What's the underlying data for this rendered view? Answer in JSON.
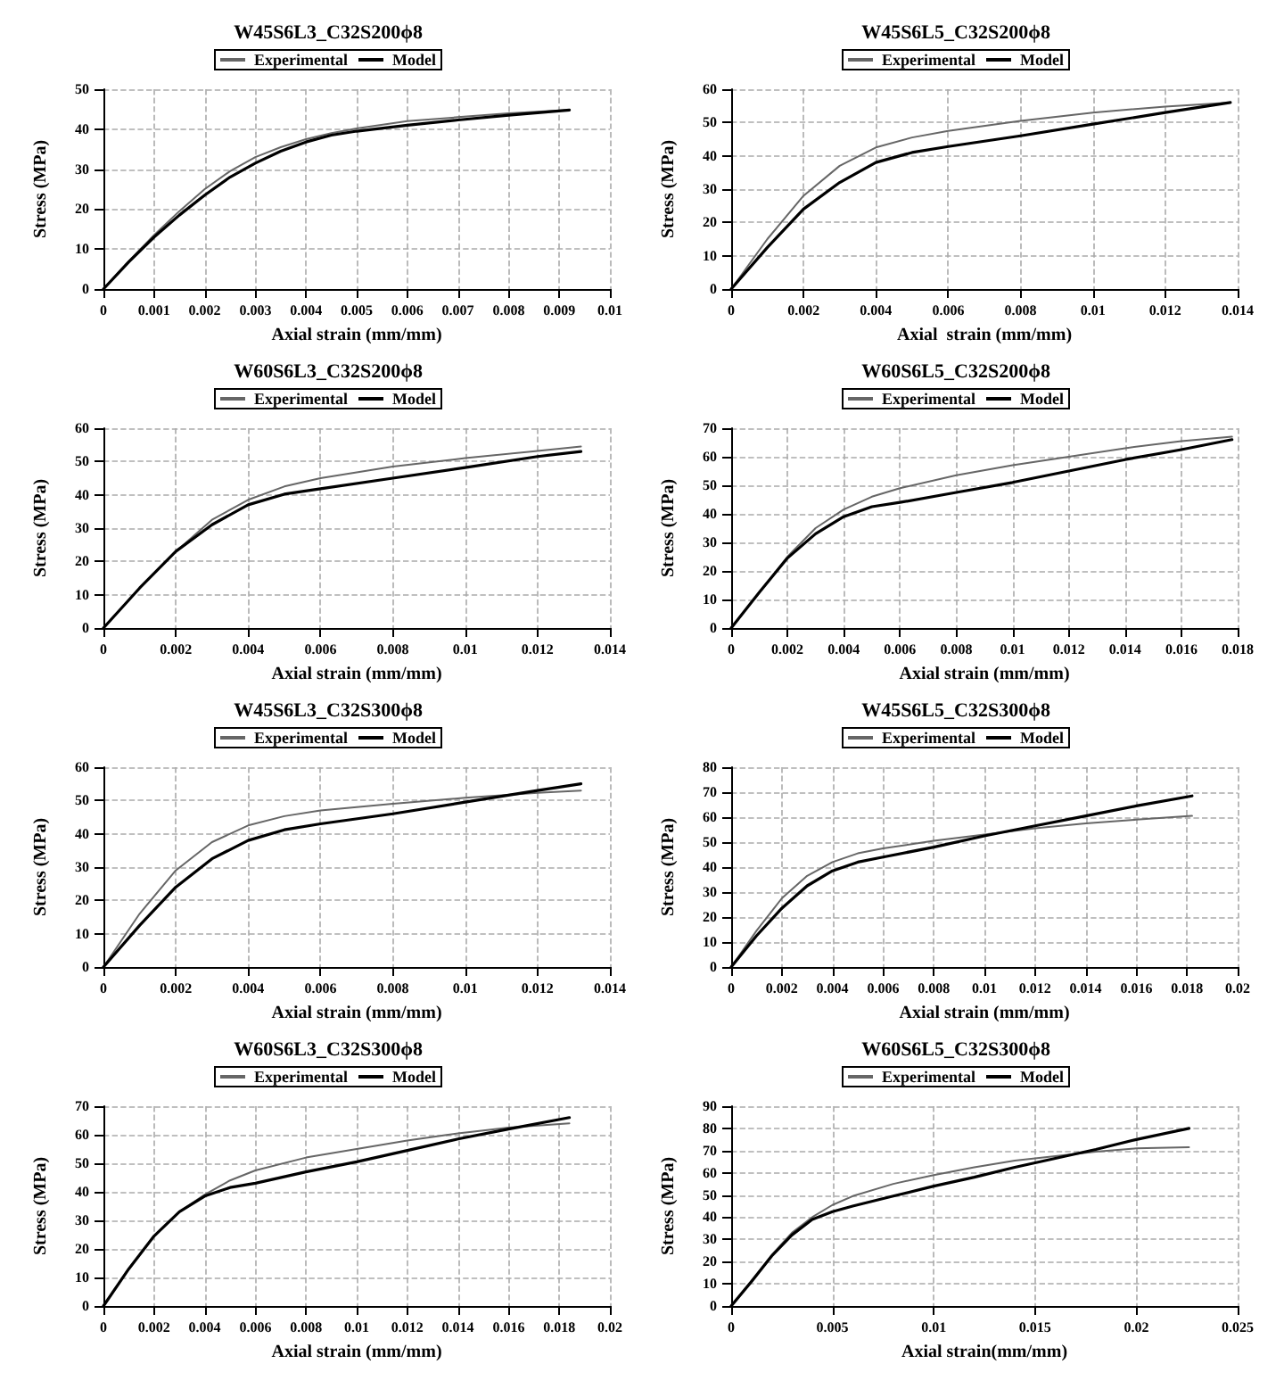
{
  "chart_data": [
    {
      "type": "line",
      "title": "W45S6L3_C32S200ϕ8",
      "xlabel": "Axial strain (mm/mm)",
      "ylabel": "Stress (MPa)",
      "xlim": [
        0,
        0.01
      ],
      "xticks": [
        0,
        0.001,
        0.002,
        0.003,
        0.004,
        0.005,
        0.006,
        0.007,
        0.008,
        0.009,
        0.01
      ],
      "ylim": [
        0,
        50
      ],
      "yticks": [
        0,
        10,
        20,
        30,
        40,
        50
      ],
      "grid": true,
      "legend": "top",
      "marker": "none",
      "line_style": "solid",
      "series": [
        {
          "name": "Experimental",
          "color": "#666666",
          "x": [
            0,
            0.0005,
            0.001,
            0.0015,
            0.002,
            0.0025,
            0.003,
            0.0035,
            0.004,
            0.0045,
            0.005,
            0.006,
            0.007,
            0.008,
            0.0092
          ],
          "values": [
            0,
            7,
            13.5,
            19.5,
            25,
            29.5,
            33,
            35.5,
            37.5,
            39,
            40.2,
            42,
            43,
            44,
            44.8
          ]
        },
        {
          "name": "Model",
          "color": "#000000",
          "x": [
            0,
            0.0005,
            0.001,
            0.0015,
            0.002,
            0.0025,
            0.003,
            0.0035,
            0.004,
            0.0045,
            0.005,
            0.006,
            0.007,
            0.008,
            0.0092
          ],
          "values": [
            0,
            6.8,
            13,
            18.5,
            23.5,
            28,
            31.5,
            34.5,
            36.8,
            38.5,
            39.5,
            41,
            42.3,
            43.5,
            44.8
          ]
        }
      ]
    },
    {
      "type": "line",
      "title": "W45S6L5_C32S200ϕ8",
      "xlabel": "Axial  strain (mm/mm)",
      "ylabel": "Stress (MPa)",
      "xlim": [
        0,
        0.014
      ],
      "xticks": [
        0,
        0.002,
        0.004,
        0.006,
        0.008,
        0.01,
        0.012,
        0.014
      ],
      "ylim": [
        0,
        60
      ],
      "yticks": [
        0,
        10,
        20,
        30,
        40,
        50,
        60
      ],
      "grid": true,
      "legend": "top",
      "marker": "none",
      "line_style": "solid",
      "series": [
        {
          "name": "Experimental",
          "color": "#666666",
          "x": [
            0,
            0.001,
            0.002,
            0.003,
            0.004,
            0.005,
            0.006,
            0.008,
            0.01,
            0.012,
            0.0138
          ],
          "values": [
            0,
            15,
            28,
            37,
            42.5,
            45.5,
            47.5,
            50.5,
            53,
            54.8,
            56
          ]
        },
        {
          "name": "Model",
          "color": "#000000",
          "x": [
            0,
            0.001,
            0.002,
            0.003,
            0.004,
            0.005,
            0.006,
            0.008,
            0.01,
            0.012,
            0.0138
          ],
          "values": [
            0,
            12.5,
            24,
            32,
            38,
            41,
            42.8,
            46,
            49.5,
            53,
            56
          ]
        }
      ]
    },
    {
      "type": "line",
      "title": "W60S6L3_C32S200ϕ8",
      "xlabel": "Axial strain (mm/mm)",
      "ylabel": "Stress (MPa)",
      "xlim": [
        0,
        0.014
      ],
      "xticks": [
        0,
        0.002,
        0.004,
        0.006,
        0.008,
        0.01,
        0.012,
        0.014
      ],
      "ylim": [
        0,
        60
      ],
      "yticks": [
        0,
        10,
        20,
        30,
        40,
        50,
        60
      ],
      "grid": true,
      "legend": "top",
      "marker": "none",
      "line_style": "solid",
      "series": [
        {
          "name": "Experimental",
          "color": "#666666",
          "x": [
            0,
            0.001,
            0.002,
            0.003,
            0.004,
            0.005,
            0.006,
            0.008,
            0.01,
            0.012,
            0.0132
          ],
          "values": [
            0,
            12,
            23,
            32.5,
            38.5,
            42.5,
            45,
            48.5,
            51,
            53.2,
            54.5
          ]
        },
        {
          "name": "Model",
          "color": "#000000",
          "x": [
            0,
            0.001,
            0.002,
            0.003,
            0.004,
            0.005,
            0.006,
            0.008,
            0.01,
            0.012,
            0.0132
          ],
          "values": [
            0,
            12,
            23,
            31,
            37,
            40.2,
            41.8,
            45,
            48.2,
            51.5,
            53
          ]
        }
      ]
    },
    {
      "type": "line",
      "title": "W60S6L5_C32S200ϕ8",
      "xlabel": "Axial strain (mm/mm)",
      "ylabel": "Stress (MPa)",
      "xlim": [
        0,
        0.018
      ],
      "xticks": [
        0,
        0.002,
        0.004,
        0.006,
        0.008,
        0.01,
        0.012,
        0.014,
        0.016,
        0.018
      ],
      "ylim": [
        0,
        70
      ],
      "yticks": [
        0,
        10,
        20,
        30,
        40,
        50,
        60,
        70
      ],
      "grid": true,
      "legend": "top",
      "marker": "none",
      "line_style": "solid",
      "series": [
        {
          "name": "Experimental",
          "color": "#666666",
          "x": [
            0,
            0.001,
            0.002,
            0.003,
            0.004,
            0.005,
            0.006,
            0.008,
            0.01,
            0.012,
            0.014,
            0.016,
            0.0178
          ],
          "values": [
            0,
            12.5,
            25,
            35,
            41.5,
            46,
            49,
            53.5,
            57,
            60,
            63,
            65.5,
            67
          ]
        },
        {
          "name": "Model",
          "color": "#000000",
          "x": [
            0,
            0.001,
            0.002,
            0.003,
            0.004,
            0.005,
            0.006,
            0.008,
            0.01,
            0.012,
            0.014,
            0.016,
            0.0178
          ],
          "values": [
            0,
            12.5,
            24.5,
            33,
            39,
            42.5,
            44,
            47.5,
            51,
            55,
            59,
            62.5,
            66
          ]
        }
      ]
    },
    {
      "type": "line",
      "title": "W45S6L3_C32S300ϕ8",
      "xlabel": "Axial strain (mm/mm)",
      "ylabel": "Stress (MPa)",
      "xlim": [
        0,
        0.014
      ],
      "xticks": [
        0,
        0.002,
        0.004,
        0.006,
        0.008,
        0.01,
        0.012,
        0.014
      ],
      "ylim": [
        0,
        60
      ],
      "yticks": [
        0,
        10,
        20,
        30,
        40,
        50,
        60
      ],
      "grid": true,
      "legend": "top",
      "marker": "none",
      "line_style": "solid",
      "series": [
        {
          "name": "Experimental",
          "color": "#666666",
          "x": [
            0,
            0.001,
            0.002,
            0.003,
            0.004,
            0.005,
            0.006,
            0.008,
            0.01,
            0.012,
            0.0132
          ],
          "values": [
            0,
            16,
            29,
            37.5,
            42.5,
            45.3,
            47,
            49,
            50.8,
            52.3,
            53
          ]
        },
        {
          "name": "Model",
          "color": "#000000",
          "x": [
            0,
            0.001,
            0.002,
            0.003,
            0.004,
            0.005,
            0.006,
            0.008,
            0.01,
            0.012,
            0.0132
          ],
          "values": [
            0,
            12.5,
            24,
            32.5,
            38,
            41.2,
            43,
            46,
            49.5,
            53,
            55
          ]
        }
      ]
    },
    {
      "type": "line",
      "title": "W45S6L5_C32S300ϕ8",
      "xlabel": "Axial strain (mm/mm)",
      "ylabel": "Stress (MPa)",
      "xlim": [
        0,
        0.02
      ],
      "xticks": [
        0,
        0.002,
        0.004,
        0.006,
        0.008,
        0.01,
        0.012,
        0.014,
        0.016,
        0.018,
        0.02
      ],
      "ylim": [
        0,
        80
      ],
      "yticks": [
        0,
        10,
        20,
        30,
        40,
        50,
        60,
        70,
        80
      ],
      "grid": true,
      "legend": "top",
      "marker": "none",
      "line_style": "solid",
      "series": [
        {
          "name": "Experimental",
          "color": "#666666",
          "x": [
            0,
            0.001,
            0.002,
            0.003,
            0.004,
            0.005,
            0.006,
            0.008,
            0.01,
            0.012,
            0.014,
            0.016,
            0.0182
          ],
          "values": [
            0,
            14.5,
            27.5,
            36.5,
            42,
            45.5,
            47.5,
            50.5,
            53,
            55.5,
            57.5,
            59,
            60.5
          ]
        },
        {
          "name": "Model",
          "color": "#000000",
          "x": [
            0,
            0.001,
            0.002,
            0.003,
            0.004,
            0.005,
            0.006,
            0.008,
            0.01,
            0.012,
            0.014,
            0.016,
            0.0182
          ],
          "values": [
            0,
            12.5,
            23.5,
            32.5,
            38.5,
            42,
            44,
            48,
            52.5,
            56.5,
            60.5,
            64.5,
            68.5
          ]
        }
      ]
    },
    {
      "type": "line",
      "title": "W60S6L3_C32S300ϕ8",
      "xlabel": "Axial strain (mm/mm)",
      "ylabel": "Stress (MPa)",
      "xlim": [
        0,
        0.02
      ],
      "xticks": [
        0,
        0.002,
        0.004,
        0.006,
        0.008,
        0.01,
        0.012,
        0.014,
        0.016,
        0.018,
        0.02
      ],
      "ylim": [
        0,
        70
      ],
      "yticks": [
        0,
        10,
        20,
        30,
        40,
        50,
        60,
        70
      ],
      "grid": true,
      "legend": "top",
      "marker": "none",
      "line_style": "solid",
      "series": [
        {
          "name": "Experimental",
          "color": "#666666",
          "x": [
            0,
            0.001,
            0.002,
            0.003,
            0.004,
            0.005,
            0.006,
            0.008,
            0.01,
            0.012,
            0.014,
            0.016,
            0.0184
          ],
          "values": [
            0,
            13,
            24.5,
            33,
            39,
            44,
            47.5,
            52,
            55,
            58,
            60.5,
            62.5,
            64
          ]
        },
        {
          "name": "Model",
          "color": "#000000",
          "x": [
            0,
            0.001,
            0.002,
            0.003,
            0.004,
            0.005,
            0.006,
            0.008,
            0.01,
            0.012,
            0.014,
            0.016,
            0.0184
          ],
          "values": [
            0,
            13,
            24.5,
            33,
            38.5,
            41.5,
            43,
            47,
            50.5,
            54.5,
            58.5,
            62,
            66
          ]
        }
      ]
    },
    {
      "type": "line",
      "title": "W60S6L5_C32S300ϕ8",
      "xlabel": "Axial strain(mm/mm)",
      "ylabel": "Stress (MPa)",
      "xlim": [
        0,
        0.025
      ],
      "xticks": [
        0,
        0.005,
        0.01,
        0.015,
        0.02,
        0.025
      ],
      "ylim": [
        0,
        90
      ],
      "yticks": [
        0,
        10,
        20,
        30,
        40,
        50,
        60,
        70,
        80,
        90
      ],
      "grid": true,
      "legend": "top",
      "marker": "none",
      "line_style": "solid",
      "series": [
        {
          "name": "Experimental",
          "color": "#666666",
          "x": [
            0,
            0.001,
            0.002,
            0.003,
            0.004,
            0.005,
            0.006,
            0.008,
            0.01,
            0.012,
            0.014,
            0.016,
            0.018,
            0.02,
            0.0226
          ],
          "values": [
            0,
            11,
            23,
            33,
            40,
            45.5,
            49.5,
            55,
            59,
            62.5,
            65.5,
            67.5,
            69.5,
            71,
            71.5
          ]
        },
        {
          "name": "Model",
          "color": "#000000",
          "x": [
            0,
            0.001,
            0.002,
            0.003,
            0.004,
            0.005,
            0.006,
            0.008,
            0.01,
            0.012,
            0.014,
            0.016,
            0.018,
            0.02,
            0.0226
          ],
          "values": [
            0,
            11,
            22.5,
            32,
            39,
            42.5,
            45,
            49.5,
            54,
            58,
            62.5,
            66.5,
            70.5,
            75,
            80
          ]
        }
      ]
    }
  ]
}
